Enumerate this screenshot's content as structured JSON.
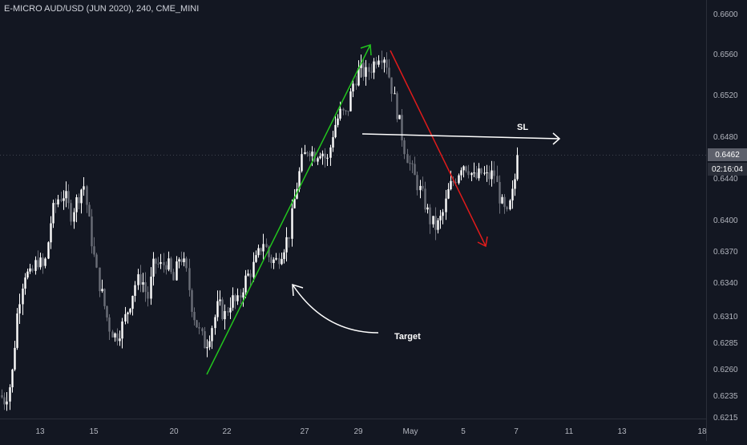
{
  "header": {
    "symbol_title": "E-MICRO AUD/USD (JUN 2020), 240, CME_MINI"
  },
  "badges": {
    "last_price": "0.6462",
    "countdown": "02:16:04"
  },
  "annotations": {
    "sl_label": "SL",
    "target_label": "Target"
  },
  "colors": {
    "background": "#131722",
    "candle_up": "#ffffff",
    "candle_down": "#6b6e78",
    "up_arrow": "#22c51e",
    "down_arrow": "#e01b1b",
    "lines": "#ffffff"
  },
  "chart_data": {
    "type": "candlestick",
    "title": "E-MICRO AUD/USD (JUN 2020), 240, CME_MINI",
    "ylim": [
      0.6213,
      0.6612
    ],
    "y_ticks": [
      "0.6600",
      "0.6560",
      "0.6520",
      "0.6480",
      "0.6440",
      "0.6400",
      "0.6370",
      "0.6340",
      "0.6310",
      "0.6285",
      "0.6260",
      "0.6235",
      "0.6215"
    ],
    "x_ticks": [
      "13",
      "15",
      "20",
      "22",
      "27",
      "29",
      "May",
      "5",
      "7",
      "11",
      "13",
      "18"
    ],
    "last_price": 0.6462,
    "sl_level": 0.6474,
    "anchors": [
      {
        "x": 0,
        "p": 0.6235
      },
      {
        "x": 6,
        "p": 0.623
      },
      {
        "x": 14,
        "p": 0.625
      },
      {
        "x": 22,
        "p": 0.6318
      },
      {
        "x": 30,
        "p": 0.635
      },
      {
        "x": 38,
        "p": 0.6345
      },
      {
        "x": 46,
        "p": 0.6362
      },
      {
        "x": 55,
        "p": 0.6352
      },
      {
        "x": 64,
        "p": 0.6405
      },
      {
        "x": 72,
        "p": 0.642
      },
      {
        "x": 80,
        "p": 0.6425
      },
      {
        "x": 88,
        "p": 0.6405
      },
      {
        "x": 96,
        "p": 0.642
      },
      {
        "x": 104,
        "p": 0.6435
      },
      {
        "x": 112,
        "p": 0.639
      },
      {
        "x": 120,
        "p": 0.635
      },
      {
        "x": 128,
        "p": 0.6325
      },
      {
        "x": 136,
        "p": 0.63
      },
      {
        "x": 144,
        "p": 0.629
      },
      {
        "x": 152,
        "p": 0.63
      },
      {
        "x": 160,
        "p": 0.6318
      },
      {
        "x": 168,
        "p": 0.6338
      },
      {
        "x": 176,
        "p": 0.6345
      },
      {
        "x": 184,
        "p": 0.6325
      },
      {
        "x": 192,
        "p": 0.636
      },
      {
        "x": 200,
        "p": 0.6355
      },
      {
        "x": 208,
        "p": 0.636
      },
      {
        "x": 216,
        "p": 0.634
      },
      {
        "x": 224,
        "p": 0.6368
      },
      {
        "x": 232,
        "p": 0.635
      },
      {
        "x": 240,
        "p": 0.6315
      },
      {
        "x": 248,
        "p": 0.6295
      },
      {
        "x": 256,
        "p": 0.6282
      },
      {
        "x": 264,
        "p": 0.63
      },
      {
        "x": 272,
        "p": 0.632
      },
      {
        "x": 280,
        "p": 0.631
      },
      {
        "x": 288,
        "p": 0.6325
      },
      {
        "x": 296,
        "p": 0.632
      },
      {
        "x": 304,
        "p": 0.634
      },
      {
        "x": 312,
        "p": 0.635
      },
      {
        "x": 320,
        "p": 0.6362
      },
      {
        "x": 328,
        "p": 0.638
      },
      {
        "x": 336,
        "p": 0.6362
      },
      {
        "x": 344,
        "p": 0.636
      },
      {
        "x": 352,
        "p": 0.6372
      },
      {
        "x": 360,
        "p": 0.6385
      },
      {
        "x": 368,
        "p": 0.6425
      },
      {
        "x": 376,
        "p": 0.6455
      },
      {
        "x": 384,
        "p": 0.647
      },
      {
        "x": 392,
        "p": 0.6462
      },
      {
        "x": 400,
        "p": 0.6468
      },
      {
        "x": 408,
        "p": 0.6455
      },
      {
        "x": 416,
        "p": 0.6488
      },
      {
        "x": 424,
        "p": 0.6502
      },
      {
        "x": 432,
        "p": 0.65
      },
      {
        "x": 440,
        "p": 0.653
      },
      {
        "x": 448,
        "p": 0.6545
      },
      {
        "x": 456,
        "p": 0.654
      },
      {
        "x": 464,
        "p": 0.6548
      },
      {
        "x": 472,
        "p": 0.656
      },
      {
        "x": 480,
        "p": 0.6558
      },
      {
        "x": 488,
        "p": 0.6528
      },
      {
        "x": 496,
        "p": 0.65
      },
      {
        "x": 504,
        "p": 0.647
      },
      {
        "x": 512,
        "p": 0.645
      },
      {
        "x": 520,
        "p": 0.6435
      },
      {
        "x": 528,
        "p": 0.642
      },
      {
        "x": 536,
        "p": 0.64
      },
      {
        "x": 544,
        "p": 0.6392
      },
      {
        "x": 552,
        "p": 0.6405
      },
      {
        "x": 560,
        "p": 0.643
      },
      {
        "x": 568,
        "p": 0.644
      },
      {
        "x": 576,
        "p": 0.6455
      },
      {
        "x": 584,
        "p": 0.645
      },
      {
        "x": 592,
        "p": 0.6438
      },
      {
        "x": 600,
        "p": 0.6445
      },
      {
        "x": 608,
        "p": 0.644
      },
      {
        "x": 616,
        "p": 0.6445
      },
      {
        "x": 624,
        "p": 0.6418
      },
      {
        "x": 632,
        "p": 0.6402
      },
      {
        "x": 640,
        "p": 0.6428
      },
      {
        "x": 646,
        "p": 0.6462
      }
    ]
  }
}
